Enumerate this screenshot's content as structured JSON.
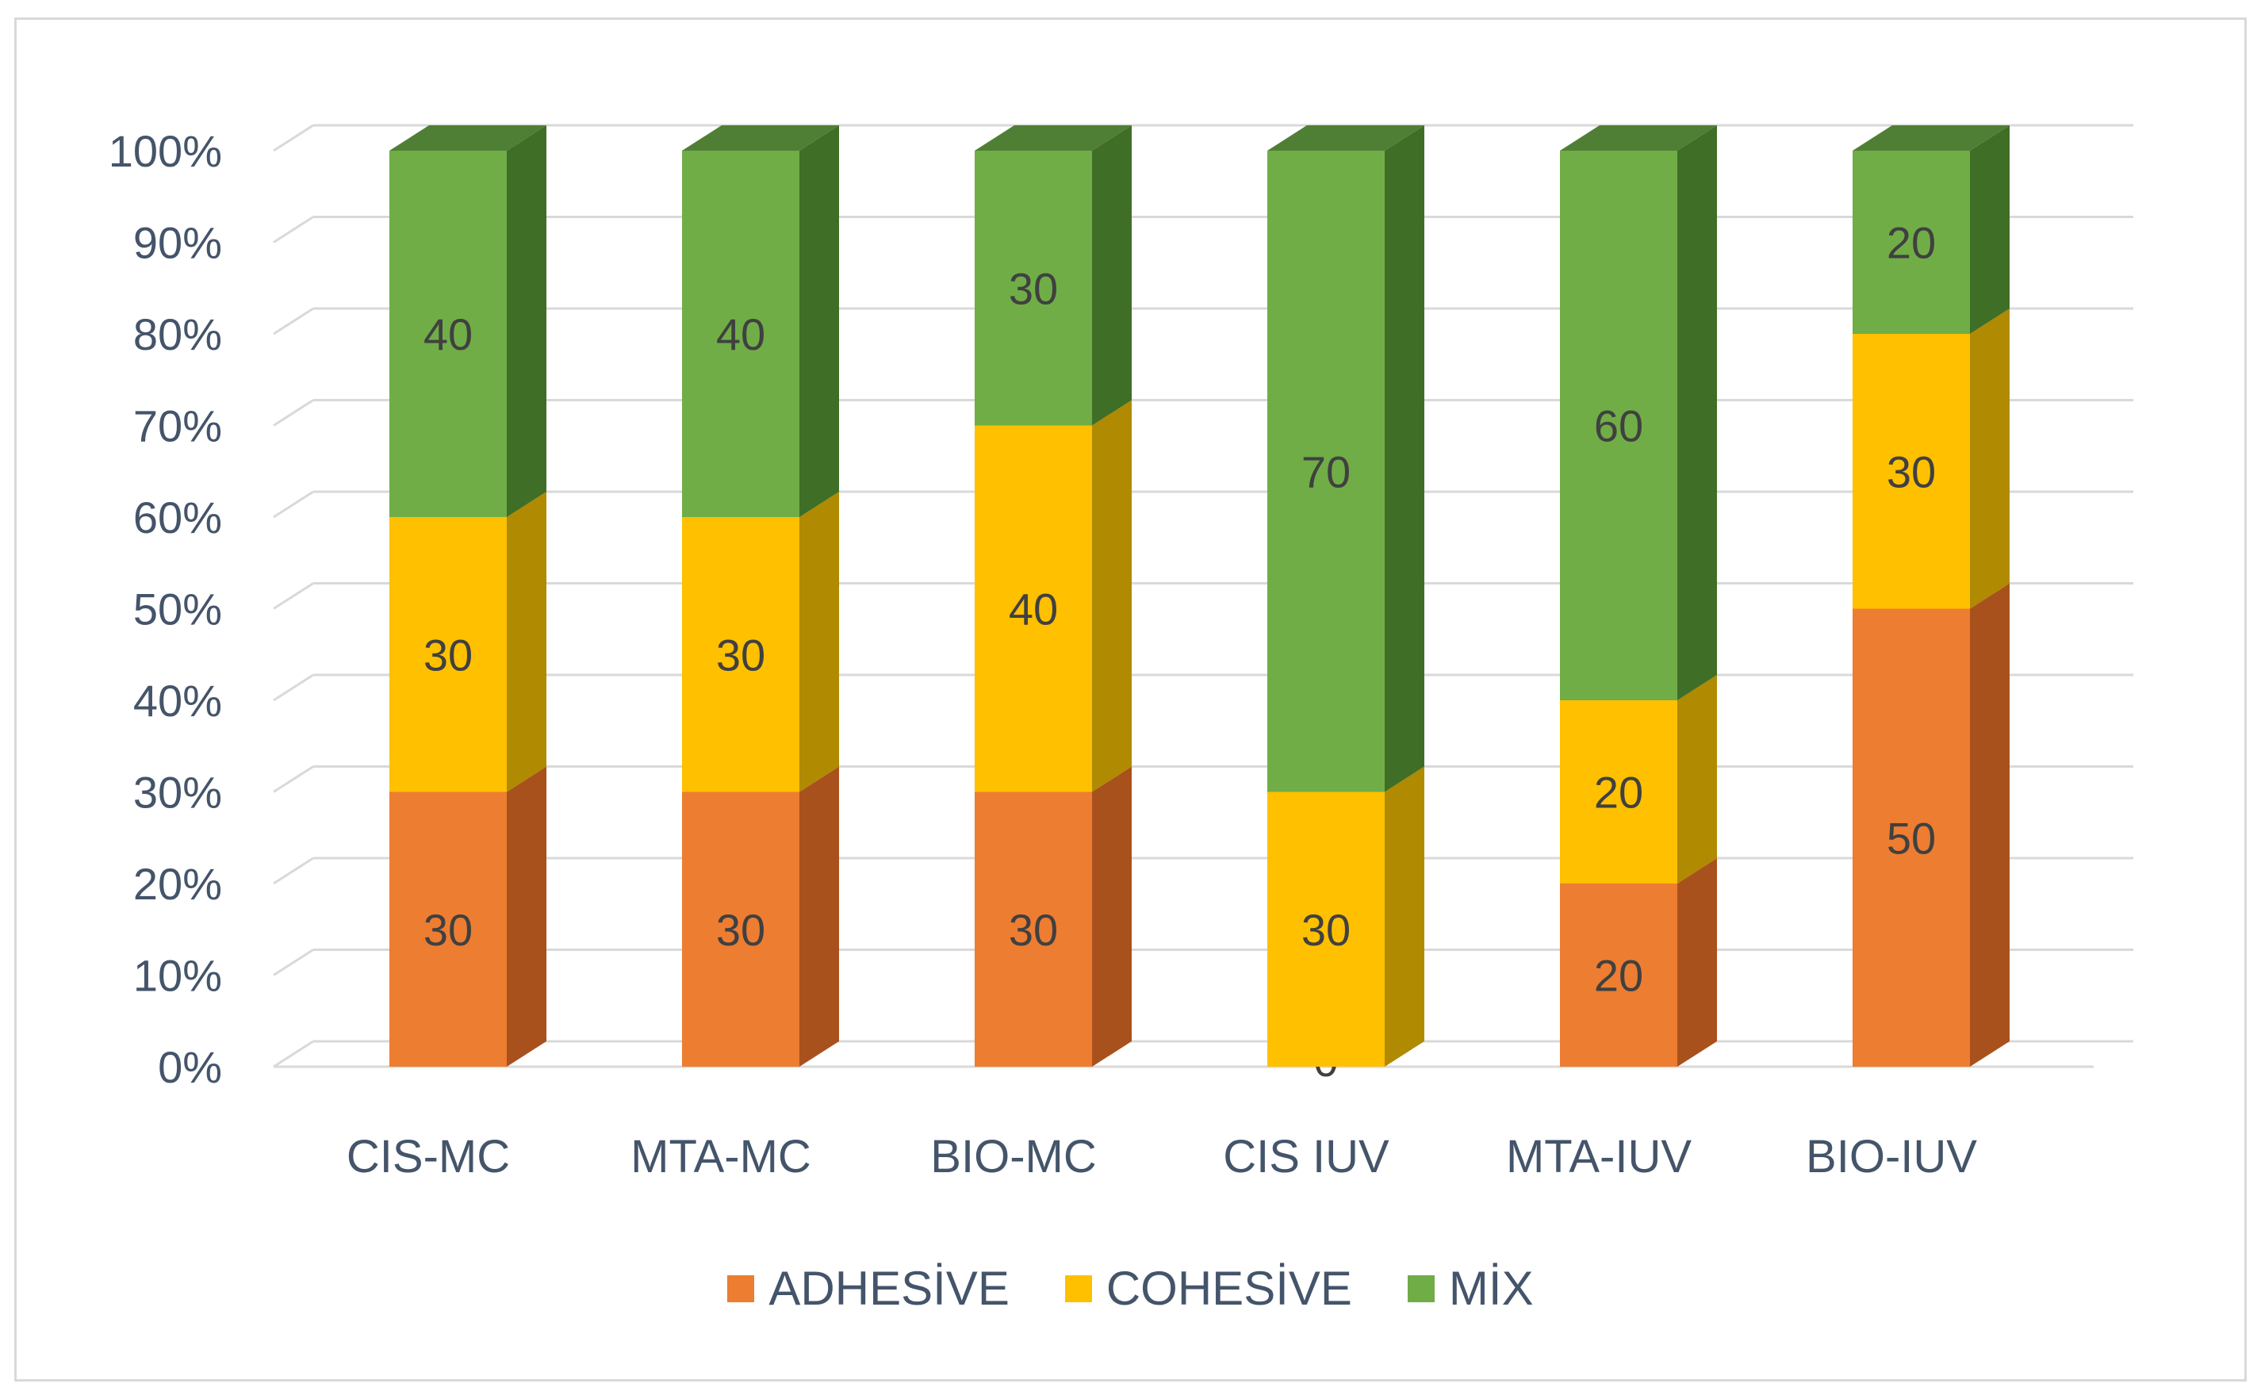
{
  "chart_data": {
    "type": "bar",
    "subtype": "stacked-percent-3d",
    "title": "",
    "xlabel": "",
    "ylabel": "",
    "categories": [
      "CIS-MC",
      "MTA-MC",
      "BIO-MC",
      "CIS IUV",
      "MTA-IUV",
      "BIO-IUV"
    ],
    "series": [
      {
        "name": "ADHESİVE",
        "values": [
          30,
          30,
          30,
          0,
          20,
          50
        ],
        "color": "#ed7d31",
        "side_color": "#a9511c"
      },
      {
        "name": "COHESİVE",
        "values": [
          30,
          30,
          40,
          30,
          20,
          30
        ],
        "color": "#ffc000",
        "side_color": "#b08a00"
      },
      {
        "name": "MİX",
        "values": [
          40,
          40,
          30,
          70,
          60,
          20
        ],
        "color": "#70ad47",
        "side_color": "#3f6e26"
      }
    ],
    "y_ticks": [
      "0%",
      "10%",
      "20%",
      "30%",
      "40%",
      "50%",
      "60%",
      "70%",
      "80%",
      "90%",
      "100%"
    ],
    "ylim": [
      0,
      100
    ],
    "grid": true,
    "legend_position": "bottom"
  }
}
